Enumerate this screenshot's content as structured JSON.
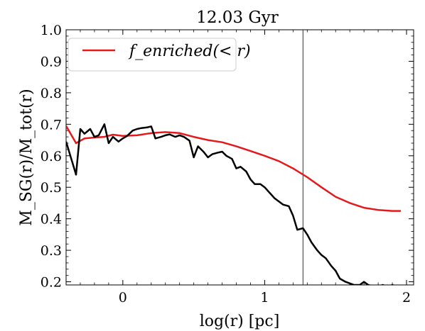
{
  "chart_data": {
    "type": "line",
    "title": "12.03 Gyr",
    "xlabel": "log(r) [pc]",
    "ylabel": "M_SG(r)/M_tot(r)",
    "xlim": [
      -0.4,
      2.05
    ],
    "ylim": [
      0.19,
      1.0
    ],
    "x_ticks": [
      0,
      1,
      2
    ],
    "x_tick_labels": [
      "0",
      "1",
      "2"
    ],
    "y_ticks": [
      0.2,
      0.3,
      0.4,
      0.5,
      0.6,
      0.7,
      0.8,
      0.9,
      1.0
    ],
    "y_tick_labels": [
      "0.2",
      "0.3",
      "0.4",
      "0.5",
      "0.6",
      "0.7",
      "0.8",
      "0.9",
      "1.0"
    ],
    "grid": false,
    "legend_position": "top-left",
    "vline_x": 1.27,
    "series": [
      {
        "key": "enriched",
        "name": "f_enriched(< r)",
        "color": "#e31a1c",
        "x": [
          -0.4,
          -0.33,
          -0.27,
          -0.2,
          -0.13,
          -0.07,
          0.0,
          0.1,
          0.2,
          0.3,
          0.4,
          0.5,
          0.6,
          0.7,
          0.8,
          0.9,
          1.0,
          1.1,
          1.2,
          1.3,
          1.4,
          1.5,
          1.6,
          1.7,
          1.8,
          1.9,
          1.96
        ],
        "values": [
          0.695,
          0.64,
          0.655,
          0.658,
          0.66,
          0.667,
          0.663,
          0.665,
          0.672,
          0.675,
          0.672,
          0.66,
          0.65,
          0.643,
          0.63,
          0.615,
          0.6,
          0.583,
          0.56,
          0.532,
          0.5,
          0.47,
          0.45,
          0.435,
          0.428,
          0.425,
          0.425
        ]
      },
      {
        "key": "sg",
        "name": "",
        "color": "#000000",
        "x": [
          -0.4,
          -0.37,
          -0.33,
          -0.3,
          -0.27,
          -0.23,
          -0.2,
          -0.17,
          -0.13,
          -0.1,
          -0.07,
          -0.03,
          0.0,
          0.03,
          0.07,
          0.1,
          0.13,
          0.17,
          0.2,
          0.23,
          0.27,
          0.3,
          0.33,
          0.37,
          0.4,
          0.43,
          0.47,
          0.5,
          0.53,
          0.57,
          0.6,
          0.63,
          0.67,
          0.7,
          0.73,
          0.77,
          0.8,
          0.83,
          0.87,
          0.9,
          0.93,
          0.97,
          1.0,
          1.03,
          1.07,
          1.1,
          1.13,
          1.17,
          1.2,
          1.23,
          1.27,
          1.3,
          1.33,
          1.37,
          1.4,
          1.43,
          1.47,
          1.5,
          1.53,
          1.57,
          1.6,
          1.63,
          1.67,
          1.7,
          1.73,
          1.77,
          1.8,
          1.83,
          1.87,
          1.9,
          1.93
        ],
        "values": [
          0.645,
          0.6,
          0.54,
          0.685,
          0.67,
          0.685,
          0.66,
          0.665,
          0.7,
          0.64,
          0.66,
          0.645,
          0.655,
          0.663,
          0.68,
          0.685,
          0.688,
          0.69,
          0.693,
          0.655,
          0.66,
          0.665,
          0.668,
          0.66,
          0.665,
          0.66,
          0.648,
          0.595,
          0.63,
          0.612,
          0.595,
          0.605,
          0.61,
          0.613,
          0.6,
          0.59,
          0.56,
          0.565,
          0.55,
          0.525,
          0.51,
          0.51,
          0.5,
          0.485,
          0.465,
          0.455,
          0.445,
          0.44,
          0.41,
          0.365,
          0.37,
          0.35,
          0.325,
          0.3,
          0.285,
          0.275,
          0.25,
          0.235,
          0.21,
          0.2,
          0.195,
          0.19,
          0.19,
          0.2,
          0.19,
          0.185,
          0.18,
          0.19,
          0.185,
          0.19,
          0.185
        ]
      }
    ]
  }
}
